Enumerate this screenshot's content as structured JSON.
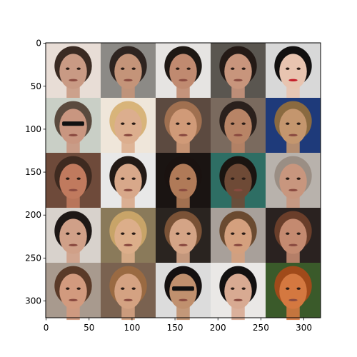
{
  "chart_data": {
    "type": "heatmap",
    "content": "image-grid",
    "grid": {
      "rows": 5,
      "cols": 5,
      "tile_px": 64
    },
    "image_extent": {
      "x": [
        0,
        320
      ],
      "y": [
        0,
        320
      ]
    },
    "xlim": [
      -0.5,
      319.5
    ],
    "ylim": [
      319.5,
      -0.5
    ],
    "x_ticks": [
      0,
      50,
      100,
      150,
      200,
      250,
      300
    ],
    "y_ticks": [
      0,
      50,
      100,
      150,
      200,
      250,
      300
    ],
    "x_tick_labels": [
      "0",
      "50",
      "100",
      "150",
      "200",
      "250",
      "300"
    ],
    "y_tick_labels": [
      "0",
      "50",
      "100",
      "150",
      "200",
      "250",
      "300"
    ],
    "title": "",
    "xlabel": "",
    "ylabel": "",
    "grid_lines": false,
    "legend": "none",
    "tiles": [
      {
        "row": 0,
        "col": 0,
        "subject": "smiling man, dark hair",
        "bg": "#e8ddd6",
        "skin": "#c99a84",
        "hair": "#3a2a22"
      },
      {
        "row": 0,
        "col": 1,
        "subject": "man, short dark hair",
        "bg": "#8c8a86",
        "skin": "#c49479",
        "hair": "#2e2420"
      },
      {
        "row": 0,
        "col": 2,
        "subject": "man, dark hair",
        "bg": "#e6e4e2",
        "skin": "#c08a70",
        "hair": "#1e1814"
      },
      {
        "row": 0,
        "col": 3,
        "subject": "woman, dark hair",
        "bg": "#5a5650",
        "skin": "#c8957c",
        "hair": "#241a16"
      },
      {
        "row": 0,
        "col": 4,
        "subject": "woman, black hair, red lips",
        "bg": "#d8d8d8",
        "skin": "#e8c4b0",
        "hair": "#121010"
      },
      {
        "row": 1,
        "col": 0,
        "subject": "man with sunglasses",
        "bg": "#c9cfc6",
        "skin": "#c99680",
        "hair": "#5a4a3e"
      },
      {
        "row": 1,
        "col": 1,
        "subject": "woman, blonde hair",
        "bg": "#efe6da",
        "skin": "#dcae8e",
        "hair": "#d8b47a"
      },
      {
        "row": 1,
        "col": 2,
        "subject": "woman, light hair",
        "bg": "#5c4a40",
        "skin": "#d09a78",
        "hair": "#a07050"
      },
      {
        "row": 1,
        "col": 3,
        "subject": "person, dark hair",
        "bg": "#7a6a5e",
        "skin": "#b88466",
        "hair": "#2a201c"
      },
      {
        "row": 1,
        "col": 4,
        "subject": "man, blue background",
        "bg": "#1e3a7a",
        "skin": "#c4966e",
        "hair": "#8a6a40"
      },
      {
        "row": 2,
        "col": 0,
        "subject": "man, reddish face",
        "bg": "#6e4a3a",
        "skin": "#c07a5e",
        "hair": "#3e2a20"
      },
      {
        "row": 2,
        "col": 1,
        "subject": "smiling woman, dark hair",
        "bg": "#e8e8e8",
        "skin": "#d8a88a",
        "hair": "#221a16"
      },
      {
        "row": 2,
        "col": 2,
        "subject": "man, dark background",
        "bg": "#1a1412",
        "skin": "#b07a58",
        "hair": "#1a1210"
      },
      {
        "row": 2,
        "col": 3,
        "subject": "man, teal background",
        "bg": "#2e6e64",
        "skin": "#6e4a36",
        "hair": "#1a1410"
      },
      {
        "row": 2,
        "col": 4,
        "subject": "older man with glasses",
        "bg": "#b8b2ac",
        "skin": "#c8967e",
        "hair": "#9a8e84"
      },
      {
        "row": 3,
        "col": 0,
        "subject": "man, dark hair",
        "bg": "#d8d2cc",
        "skin": "#d0a088",
        "hair": "#1e1816"
      },
      {
        "row": 3,
        "col": 1,
        "subject": "woman, blonde hair",
        "bg": "#8a7a5a",
        "skin": "#dcae8a",
        "hair": "#c8a468"
      },
      {
        "row": 3,
        "col": 2,
        "subject": "woman, long hair",
        "bg": "#2a2420",
        "skin": "#d4a486",
        "hair": "#7a5236"
      },
      {
        "row": 3,
        "col": 3,
        "subject": "smiling woman",
        "bg": "#a8a09a",
        "skin": "#d4a07e",
        "hair": "#6a4a30"
      },
      {
        "row": 3,
        "col": 4,
        "subject": "man, reddish hair",
        "bg": "#2a2220",
        "skin": "#c48a70",
        "hair": "#6a3e2a"
      },
      {
        "row": 4,
        "col": 0,
        "subject": "smiling woman",
        "bg": "#a89a8e",
        "skin": "#d29a7e",
        "hair": "#5a3a28"
      },
      {
        "row": 4,
        "col": 1,
        "subject": "woman, light brown hair",
        "bg": "#7a6250",
        "skin": "#d4a282",
        "hair": "#9a6a42"
      },
      {
        "row": 4,
        "col": 2,
        "subject": "man with sunglasses",
        "bg": "#dcdcdc",
        "skin": "#c0906e",
        "hair": "#141010"
      },
      {
        "row": 4,
        "col": 3,
        "subject": "woman, black hair",
        "bg": "#eae8e6",
        "skin": "#d8aa92",
        "hair": "#121010"
      },
      {
        "row": 4,
        "col": 4,
        "subject": "man, orange tones",
        "bg": "#3a5a2a",
        "skin": "#d47840",
        "hair": "#a04a1a"
      }
    ]
  }
}
